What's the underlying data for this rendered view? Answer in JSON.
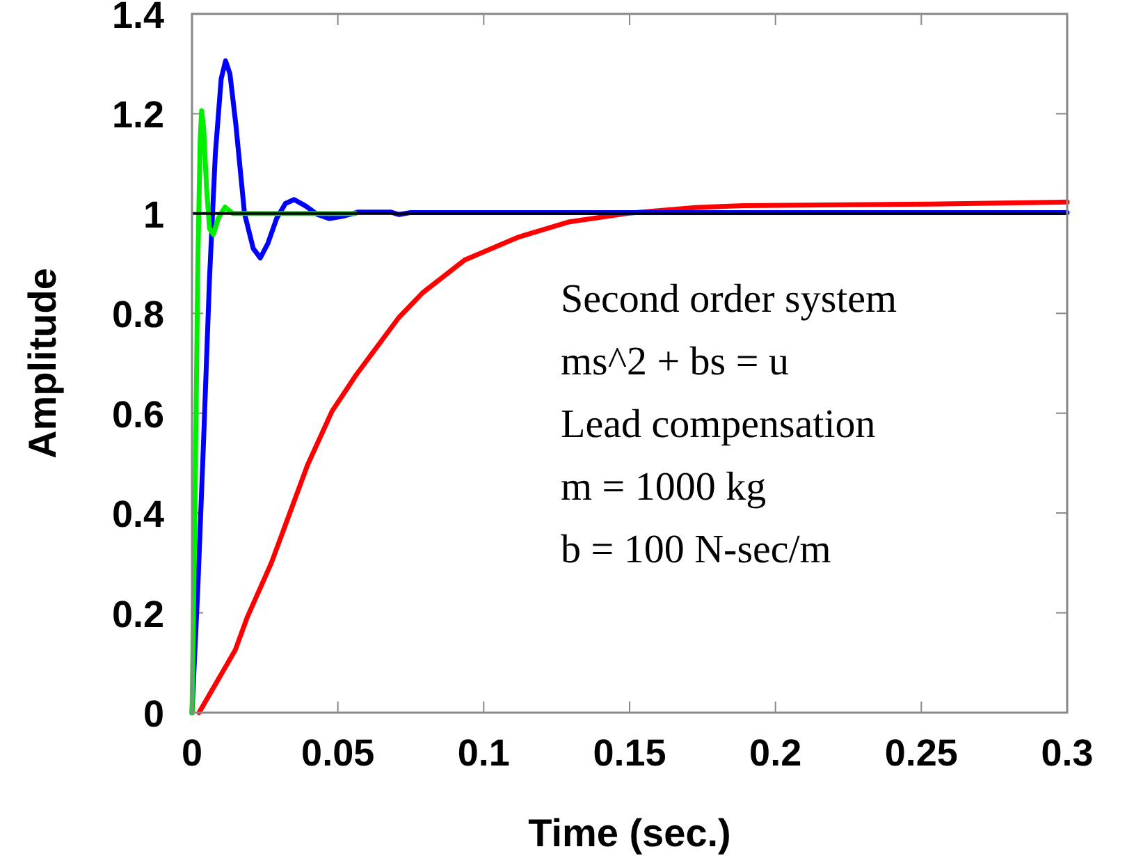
{
  "chart_data": {
    "type": "line",
    "xlabel": "Time (sec.)",
    "ylabel": "Amplitude",
    "xlim": [
      0,
      0.3
    ],
    "xticks": [
      0,
      0.05,
      0.1,
      0.15,
      0.2,
      0.25,
      0.3
    ],
    "ylim": [
      0,
      1.4
    ],
    "yticks": [
      0,
      0.2,
      0.4,
      0.6,
      0.8,
      1,
      1.2,
      1.4
    ],
    "grid": false,
    "marker": "none",
    "line_style": "solid",
    "ref_lines": [
      {
        "axis": "y",
        "value": 1,
        "color": "#000000"
      }
    ],
    "annotations": [
      "Second order system",
      "ms^2 + bs = u",
      "Lead compensation",
      "m = 1000 kg",
      "b = 100 N-sec/m"
    ],
    "series": [
      {
        "color": "#ff0000",
        "x": [
          0.0024,
          0.0148,
          0.019,
          0.0272,
          0.0396,
          0.048,
          0.0563,
          0.0708,
          0.079,
          0.0935,
          0.112,
          0.129,
          0.15,
          0.1725,
          0.189,
          0.253,
          0.3
        ],
        "values": [
          0,
          0.125,
          0.192,
          0.3,
          0.496,
          0.604,
          0.677,
          0.791,
          0.841,
          0.907,
          0.953,
          0.983,
          1.001,
          1.012,
          1.016,
          1.019,
          1.023
        ]
      },
      {
        "color": "#0000ff",
        "x": [
          0,
          0.002,
          0.004,
          0.006,
          0.008,
          0.01,
          0.0115,
          0.013,
          0.015,
          0.018,
          0.021,
          0.0234,
          0.026,
          0.029,
          0.032,
          0.035,
          0.039,
          0.043,
          0.047,
          0.052,
          0.057,
          0.068,
          0.071,
          0.075,
          0.08,
          0.3
        ],
        "values": [
          0,
          0.25,
          0.55,
          0.87,
          1.12,
          1.27,
          1.306,
          1.28,
          1.18,
          1.0,
          0.93,
          0.911,
          0.94,
          0.99,
          1.02,
          1.028,
          1.015,
          0.998,
          0.99,
          0.995,
          1.003,
          1.003,
          0.998,
          1.002,
          1.002,
          1.002
        ]
      },
      {
        "color": "#00ee00",
        "x": [
          0,
          0.001,
          0.002,
          0.0028,
          0.0033,
          0.004,
          0.005,
          0.006,
          0.0073,
          0.009,
          0.0113,
          0.014,
          0.056
        ],
        "values": [
          0,
          0.4,
          0.9,
          1.15,
          1.206,
          1.17,
          1.05,
          0.97,
          0.958,
          0.99,
          1.013,
          1.0,
          1.0
        ]
      }
    ]
  }
}
